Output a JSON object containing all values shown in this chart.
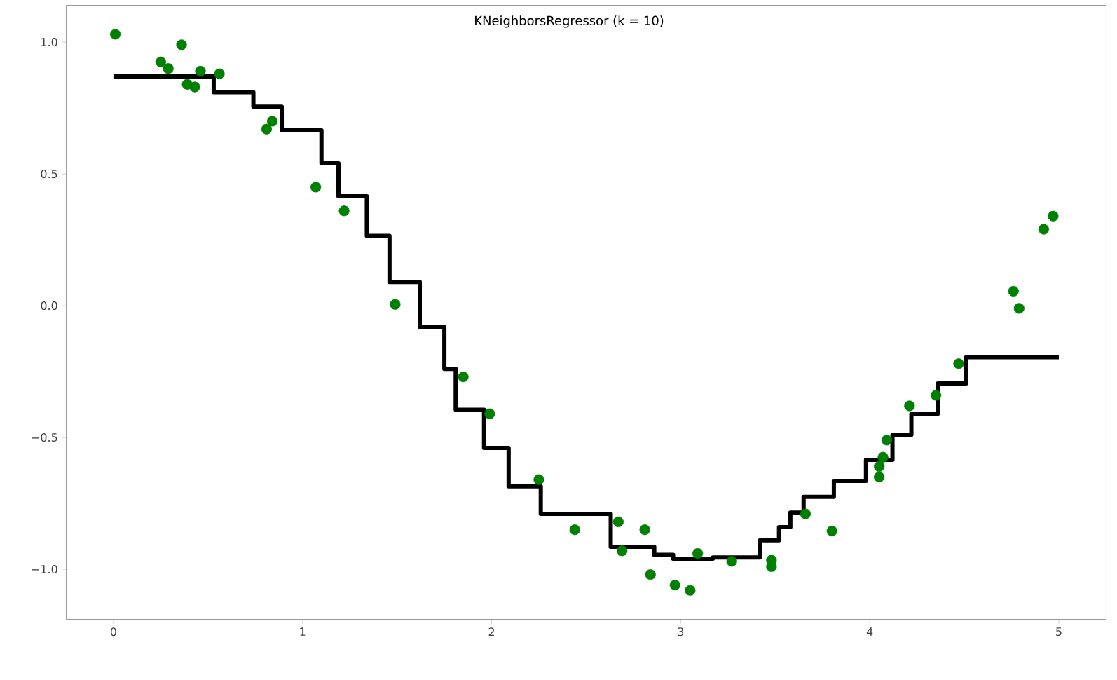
{
  "chart_data": {
    "type": "scatter",
    "title": "KNeighborsRegressor (k = 10)",
    "xlim": [
      -0.25,
      5.25
    ],
    "ylim": [
      -1.19,
      1.14
    ],
    "xticks": [
      0,
      1,
      2,
      3,
      4,
      5
    ],
    "yticks": [
      {
        "value": -1.0,
        "label": "−1.0"
      },
      {
        "value": -0.5,
        "label": "−0.5"
      },
      {
        "value": 0.0,
        "label": "0.0"
      },
      {
        "value": 0.5,
        "label": "0.5"
      },
      {
        "value": 1.0,
        "label": "1.0"
      }
    ],
    "grid": false,
    "series": [
      {
        "marker": "circle",
        "color": "#008000",
        "x": [
          0.01,
          0.25,
          0.29,
          0.36,
          0.39,
          0.43,
          0.46,
          0.56,
          0.81,
          0.84,
          1.07,
          1.22,
          1.49,
          1.85,
          1.99,
          2.25,
          2.44,
          2.67,
          2.69,
          2.81,
          2.84,
          2.97,
          3.05,
          3.09,
          3.27,
          3.48,
          3.48,
          3.66,
          3.8,
          4.05,
          4.05,
          4.07,
          4.09,
          4.21,
          4.35,
          4.47,
          4.76,
          4.79,
          4.92,
          4.97
        ],
        "values": [
          1.03,
          0.925,
          0.9,
          0.99,
          0.84,
          0.83,
          0.89,
          0.88,
          0.67,
          0.7,
          0.45,
          0.36,
          0.005,
          -0.27,
          -0.41,
          -0.66,
          -0.85,
          -0.82,
          -0.93,
          -0.85,
          -1.02,
          -1.06,
          -1.08,
          -0.94,
          -0.97,
          -0.965,
          -0.99,
          -0.79,
          -0.855,
          -0.65,
          -0.61,
          -0.575,
          -0.51,
          -0.38,
          -0.34,
          -0.22,
          0.055,
          -0.01,
          0.29,
          0.34
        ]
      },
      {
        "type": "step",
        "marker": "none",
        "color": "#000000",
        "line_style": "solid",
        "x": [
          0,
          0.53,
          0.74,
          0.89,
          1.1,
          1.19,
          1.34,
          1.46,
          1.62,
          1.75,
          1.81,
          1.96,
          2.09,
          2.26,
          2.63,
          2.86,
          2.96,
          3.17,
          3.42,
          3.52,
          3.58,
          3.65,
          3.81,
          3.98,
          4.12,
          4.22,
          4.36,
          4.51,
          5.0
        ],
        "values": [
          0.87,
          0.81,
          0.755,
          0.665,
          0.54,
          0.415,
          0.265,
          0.09,
          -0.08,
          -0.24,
          -0.395,
          -0.54,
          -0.685,
          -0.79,
          -0.915,
          -0.945,
          -0.96,
          -0.955,
          -0.89,
          -0.84,
          -0.785,
          -0.725,
          -0.665,
          -0.585,
          -0.49,
          -0.41,
          -0.295,
          -0.195,
          -0.195
        ]
      }
    ]
  }
}
